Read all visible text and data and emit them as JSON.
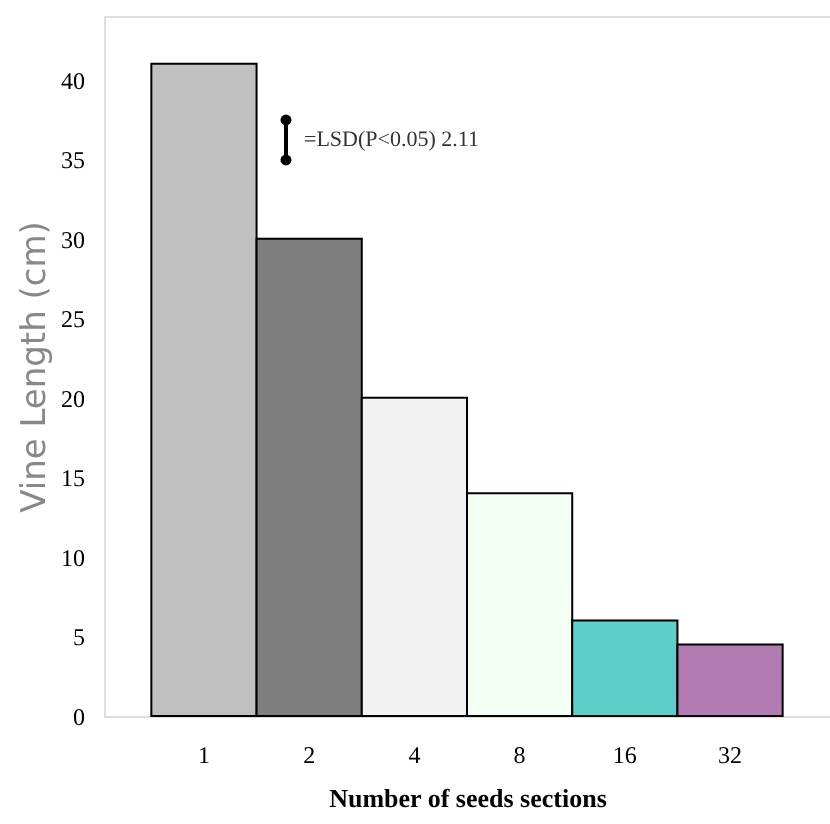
{
  "chart_data": {
    "type": "bar",
    "xlabel": "Number of seeds sections",
    "ylabel": "Vine Length (cm)",
    "categories": [
      "1",
      "2",
      "4",
      "8",
      "16",
      "32"
    ],
    "values": [
      41,
      30,
      20,
      14,
      6,
      4.5
    ],
    "colors": [
      "#c0c0c0",
      "#7f7f7f",
      "#f2f2f2",
      "#f4fff4",
      "#5ccfc8",
      "#b27cb2"
    ],
    "ylim": [
      0,
      44
    ],
    "yticks": [
      0,
      5,
      10,
      15,
      20,
      25,
      30,
      35,
      40
    ],
    "grid": false,
    "annotations": [
      "=LSD(P<0.05) 2.11"
    ]
  }
}
